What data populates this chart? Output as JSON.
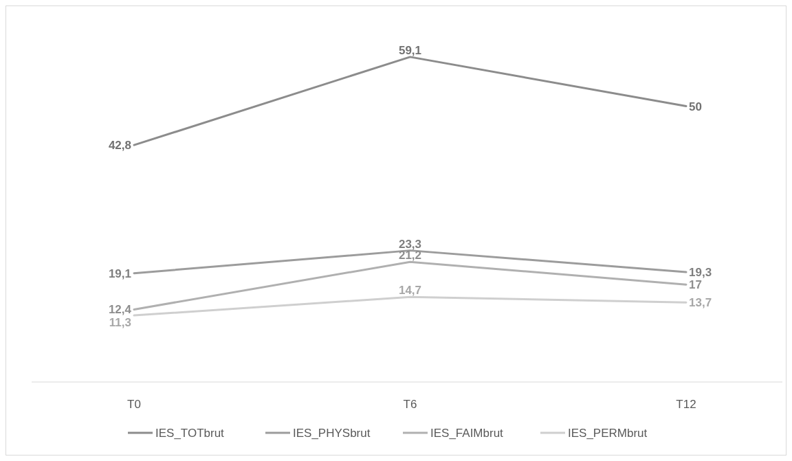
{
  "chart_data": {
    "type": "line",
    "categories": [
      "T0",
      "T6",
      "T12"
    ],
    "series": [
      {
        "name": "IES_TOTbrut",
        "color": "#8c8c8c",
        "values": [
          42.8,
          59.1,
          50
        ],
        "value_labels": [
          "42,8",
          "59,1",
          "50"
        ]
      },
      {
        "name": "IES_PHYSbrut",
        "color": "#9c9c9c",
        "values": [
          19.1,
          23.3,
          19.3
        ],
        "value_labels": [
          "19,1",
          "23,3",
          "19,3"
        ]
      },
      {
        "name": "IES_FAIMbrut",
        "color": "#b0b0b0",
        "values": [
          12.4,
          21.2,
          17
        ],
        "value_labels": [
          "12,4",
          "21,2",
          "17"
        ]
      },
      {
        "name": "IES_PERMbrut",
        "color": "#cfcfcf",
        "values": [
          11.3,
          14.7,
          13.7
        ],
        "value_labels": [
          "11,3",
          "14,7",
          "13,7"
        ]
      }
    ],
    "legend": "bottom",
    "marker": "none",
    "line_style": "solid"
  }
}
